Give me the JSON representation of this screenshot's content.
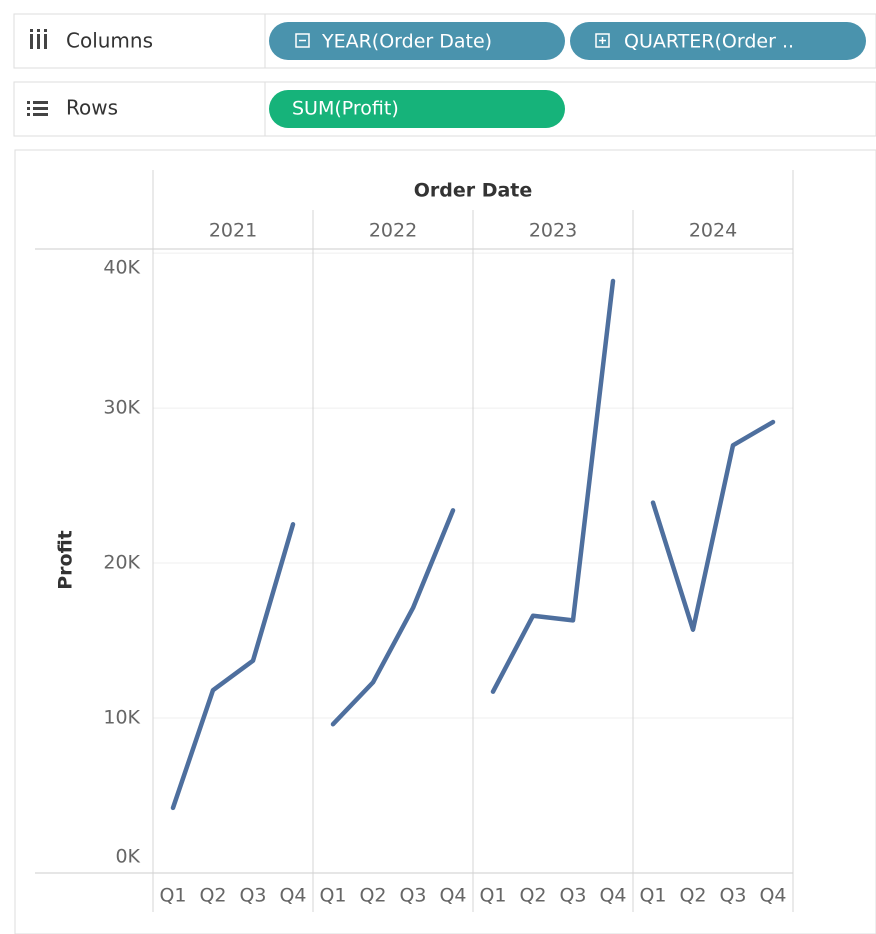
{
  "shelves": {
    "columns": {
      "label": "Columns",
      "pills": [
        "YEAR(Order Date)",
        "QUARTER(Order .."
      ]
    },
    "rows": {
      "label": "Rows",
      "pills": [
        "SUM(Profit)"
      ]
    }
  },
  "chart_data": {
    "type": "line",
    "title": "Order Date",
    "y_label": "Profit",
    "categories": [
      "Q1",
      "Q2",
      "Q3",
      "Q4"
    ],
    "panels": [
      {
        "label": "2021",
        "values": [
          4200,
          11800,
          13700,
          22500
        ]
      },
      {
        "label": "2022",
        "values": [
          9600,
          12300,
          17100,
          23400
        ]
      },
      {
        "label": "2023",
        "values": [
          11700,
          16600,
          16300,
          38200
        ]
      },
      {
        "label": "2024",
        "values": [
          23900,
          15700,
          27600,
          29100
        ]
      }
    ],
    "color": "#4e6f9e",
    "ylim": [
      0,
      40200
    ],
    "yticks": [
      {
        "value": 0,
        "label": "0K"
      },
      {
        "value": 10000,
        "label": "10K"
      },
      {
        "value": 20000,
        "label": "20K"
      },
      {
        "value": 30000,
        "label": "30K"
      },
      {
        "value": 40000,
        "label": "40K"
      }
    ],
    "grid": true
  }
}
